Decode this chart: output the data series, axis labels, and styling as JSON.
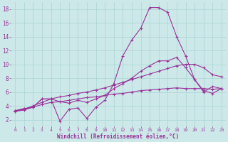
{
  "title": "",
  "xlabel": "Windchill (Refroidissement éolien,°C)",
  "background_color": "#cce8e8",
  "grid_color": "#aad4d4",
  "line_color": "#993399",
  "tick_color": "#993399",
  "xlim": [
    -0.5,
    23.5
  ],
  "ylim": [
    1.0,
    19.0
  ],
  "xticks": [
    0,
    1,
    2,
    3,
    4,
    5,
    6,
    7,
    8,
    9,
    10,
    11,
    12,
    13,
    14,
    15,
    16,
    17,
    18,
    19,
    20,
    21,
    22,
    23
  ],
  "yticks": [
    2,
    4,
    6,
    8,
    10,
    12,
    14,
    16,
    18
  ],
  "series": [
    [
      3.3,
      3.6,
      3.8,
      5.0,
      5.0,
      1.8,
      3.5,
      3.7,
      2.2,
      3.8,
      4.8,
      7.2,
      11.2,
      13.5,
      15.2,
      18.2,
      18.2,
      17.5,
      14.0,
      11.2,
      7.8,
      6.0,
      6.8,
      6.5
    ],
    [
      3.3,
      3.6,
      3.8,
      5.0,
      5.0,
      4.6,
      4.4,
      4.8,
      4.5,
      5.0,
      5.5,
      6.5,
      7.2,
      8.0,
      9.0,
      9.8,
      10.5,
      10.5,
      11.0,
      9.5,
      7.8,
      6.2,
      5.8,
      6.5
    ],
    [
      3.2,
      3.5,
      4.0,
      4.5,
      5.0,
      5.3,
      5.5,
      5.8,
      6.0,
      6.3,
      6.6,
      7.0,
      7.4,
      7.8,
      8.2,
      8.6,
      9.0,
      9.4,
      9.8,
      10.0,
      10.0,
      9.5,
      8.5,
      8.2
    ],
    [
      3.2,
      3.4,
      3.8,
      4.2,
      4.5,
      4.6,
      4.8,
      5.0,
      5.2,
      5.3,
      5.5,
      5.7,
      5.8,
      6.0,
      6.2,
      6.3,
      6.4,
      6.5,
      6.6,
      6.5,
      6.5,
      6.5,
      6.4,
      6.5
    ]
  ]
}
